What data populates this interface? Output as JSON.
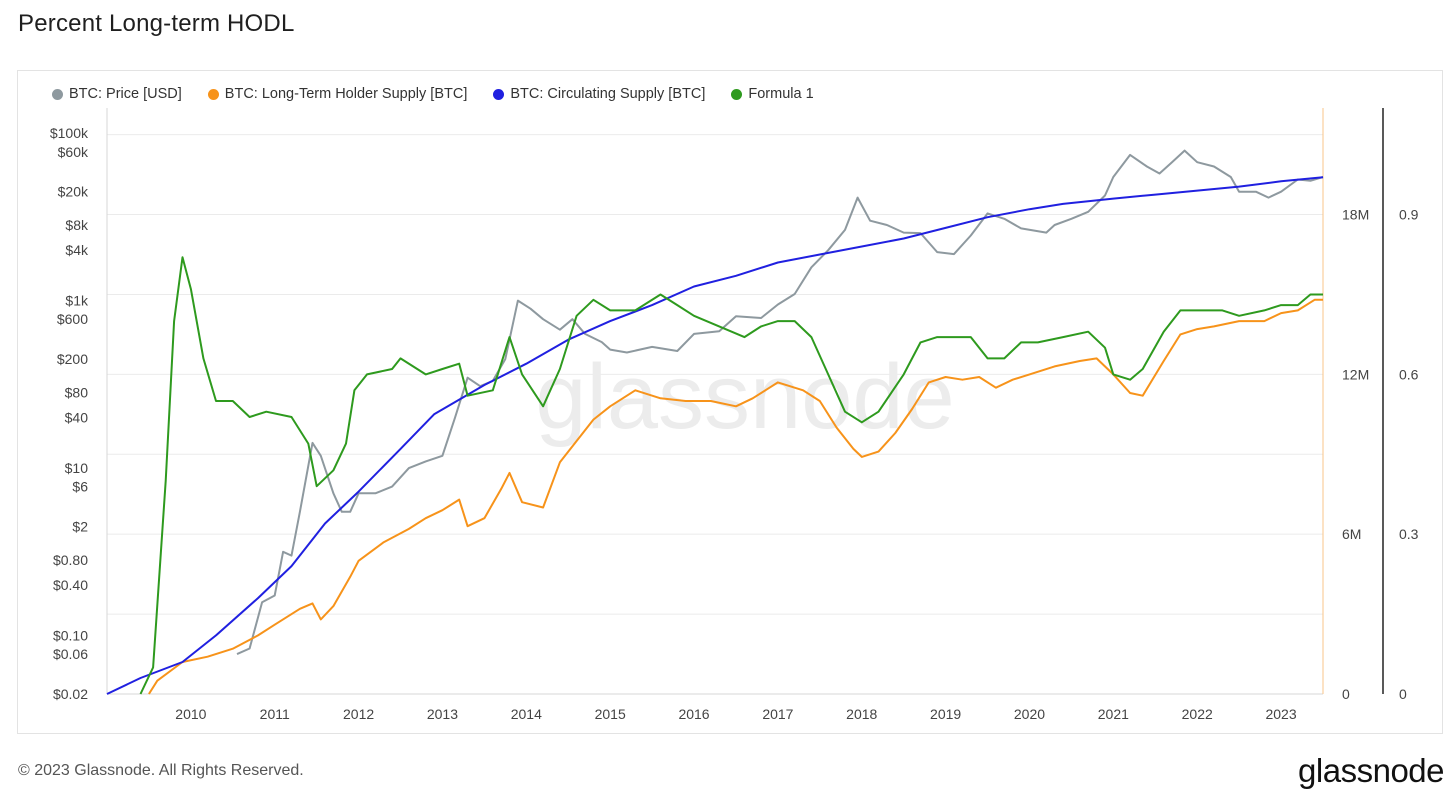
{
  "header": {
    "title": "Percent Long-term HODL"
  },
  "footer": {
    "copyright": "© 2023 Glassnode. All Rights Reserved.",
    "logo_text": "glassnode"
  },
  "watermark": "glassnode",
  "legend": [
    {
      "label": "BTC: Price [USD]",
      "color": "#8e999f"
    },
    {
      "label": "BTC: Long-Term Holder Supply [BTC]",
      "color": "#f7931a"
    },
    {
      "label": "BTC: Circulating Supply [BTC]",
      "color": "#2020e0"
    },
    {
      "label": "Formula 1",
      "color": "#2e9a1e"
    }
  ],
  "chart_data": {
    "type": "line",
    "title": "Percent Long-term HODL",
    "x_ticks": [
      "2010",
      "2011",
      "2012",
      "2013",
      "2014",
      "2015",
      "2016",
      "2017",
      "2018",
      "2019",
      "2020",
      "2021",
      "2022",
      "2023"
    ],
    "y_left_ticks": [
      "$100k",
      "$60k",
      "$20k",
      "$8k",
      "$4k",
      "$1k",
      "$600",
      "$200",
      "$80",
      "$40",
      "$10",
      "$6",
      "$2",
      "$0.80",
      "$0.40",
      "$0.10",
      "$0.06",
      "$0.02"
    ],
    "y_left_scale": "log",
    "y_supply_ticks": [
      "18M",
      "12M",
      "6M",
      "0"
    ],
    "y_supply_range": [
      0,
      22000000
    ],
    "y_ratio_ticks": [
      "0.9",
      "0.6",
      "0.3",
      "0"
    ],
    "y_ratio_range": [
      0,
      1.1
    ],
    "x_range": [
      2009.0,
      2023.5
    ],
    "grid": true,
    "legend_position": "top-left",
    "series": [
      {
        "name": "BTC: Price [USD]",
        "color": "#8e999f",
        "axis": "price",
        "points": [
          [
            2010.55,
            0.06
          ],
          [
            2010.7,
            0.07
          ],
          [
            2010.85,
            0.25
          ],
          [
            2011.0,
            0.3
          ],
          [
            2011.1,
            1
          ],
          [
            2011.2,
            0.9
          ],
          [
            2011.3,
            3
          ],
          [
            2011.45,
            20
          ],
          [
            2011.55,
            14
          ],
          [
            2011.7,
            5
          ],
          [
            2011.8,
            3
          ],
          [
            2011.9,
            3
          ],
          [
            2012.0,
            5
          ],
          [
            2012.2,
            5
          ],
          [
            2012.4,
            6
          ],
          [
            2012.6,
            10
          ],
          [
            2012.8,
            12
          ],
          [
            2013.0,
            14
          ],
          [
            2013.15,
            40
          ],
          [
            2013.3,
            120
          ],
          [
            2013.45,
            95
          ],
          [
            2013.6,
            110
          ],
          [
            2013.75,
            200
          ],
          [
            2013.9,
            1000
          ],
          [
            2014.05,
            800
          ],
          [
            2014.2,
            600
          ],
          [
            2014.4,
            450
          ],
          [
            2014.55,
            600
          ],
          [
            2014.7,
            400
          ],
          [
            2014.9,
            320
          ],
          [
            2015.0,
            260
          ],
          [
            2015.2,
            240
          ],
          [
            2015.5,
            280
          ],
          [
            2015.8,
            250
          ],
          [
            2016.0,
            400
          ],
          [
            2016.3,
            430
          ],
          [
            2016.5,
            650
          ],
          [
            2016.8,
            620
          ],
          [
            2017.0,
            900
          ],
          [
            2017.2,
            1200
          ],
          [
            2017.4,
            2500
          ],
          [
            2017.6,
            4000
          ],
          [
            2017.8,
            7000
          ],
          [
            2017.95,
            17000
          ],
          [
            2018.1,
            9000
          ],
          [
            2018.3,
            8000
          ],
          [
            2018.5,
            6500
          ],
          [
            2018.7,
            6400
          ],
          [
            2018.9,
            3800
          ],
          [
            2019.1,
            3600
          ],
          [
            2019.3,
            6000
          ],
          [
            2019.5,
            11000
          ],
          [
            2019.7,
            9500
          ],
          [
            2019.9,
            7300
          ],
          [
            2020.2,
            6500
          ],
          [
            2020.3,
            8000
          ],
          [
            2020.5,
            9500
          ],
          [
            2020.7,
            11500
          ],
          [
            2020.9,
            18000
          ],
          [
            2021.0,
            30000
          ],
          [
            2021.2,
            55000
          ],
          [
            2021.4,
            40000
          ],
          [
            2021.55,
            33000
          ],
          [
            2021.7,
            45000
          ],
          [
            2021.85,
            62000
          ],
          [
            2022.0,
            45000
          ],
          [
            2022.2,
            40000
          ],
          [
            2022.4,
            30000
          ],
          [
            2022.5,
            20000
          ],
          [
            2022.7,
            20000
          ],
          [
            2022.85,
            17000
          ],
          [
            2023.0,
            20000
          ],
          [
            2023.2,
            28000
          ],
          [
            2023.35,
            27000
          ],
          [
            2023.5,
            30000
          ]
        ]
      },
      {
        "name": "BTC: Long-Term Holder Supply [BTC]",
        "color": "#f7931a",
        "axis": "supply",
        "points": [
          [
            2009.5,
            0
          ],
          [
            2009.6,
            500000
          ],
          [
            2009.9,
            1200000
          ],
          [
            2010.2,
            1400000
          ],
          [
            2010.5,
            1700000
          ],
          [
            2010.8,
            2200000
          ],
          [
            2011.0,
            2600000
          ],
          [
            2011.3,
            3200000
          ],
          [
            2011.45,
            3400000
          ],
          [
            2011.55,
            2800000
          ],
          [
            2011.7,
            3300000
          ],
          [
            2011.9,
            4400000
          ],
          [
            2012.0,
            5000000
          ],
          [
            2012.3,
            5700000
          ],
          [
            2012.6,
            6200000
          ],
          [
            2012.8,
            6600000
          ],
          [
            2013.0,
            6900000
          ],
          [
            2013.2,
            7300000
          ],
          [
            2013.3,
            6300000
          ],
          [
            2013.5,
            6600000
          ],
          [
            2013.7,
            7700000
          ],
          [
            2013.8,
            8300000
          ],
          [
            2013.95,
            7200000
          ],
          [
            2014.2,
            7000000
          ],
          [
            2014.4,
            8700000
          ],
          [
            2014.6,
            9500000
          ],
          [
            2014.8,
            10300000
          ],
          [
            2015.0,
            10800000
          ],
          [
            2015.3,
            11400000
          ],
          [
            2015.6,
            11100000
          ],
          [
            2015.9,
            11000000
          ],
          [
            2016.2,
            11000000
          ],
          [
            2016.5,
            10800000
          ],
          [
            2016.7,
            11100000
          ],
          [
            2016.9,
            11500000
          ],
          [
            2017.0,
            11700000
          ],
          [
            2017.3,
            11400000
          ],
          [
            2017.5,
            11000000
          ],
          [
            2017.7,
            10000000
          ],
          [
            2017.9,
            9200000
          ],
          [
            2018.0,
            8900000
          ],
          [
            2018.2,
            9100000
          ],
          [
            2018.4,
            9800000
          ],
          [
            2018.6,
            10700000
          ],
          [
            2018.8,
            11700000
          ],
          [
            2019.0,
            11900000
          ],
          [
            2019.2,
            11800000
          ],
          [
            2019.4,
            11900000
          ],
          [
            2019.6,
            11500000
          ],
          [
            2019.8,
            11800000
          ],
          [
            2020.0,
            12000000
          ],
          [
            2020.3,
            12300000
          ],
          [
            2020.6,
            12500000
          ],
          [
            2020.8,
            12600000
          ],
          [
            2021.0,
            12000000
          ],
          [
            2021.2,
            11300000
          ],
          [
            2021.35,
            11200000
          ],
          [
            2021.6,
            12500000
          ],
          [
            2021.8,
            13500000
          ],
          [
            2022.0,
            13700000
          ],
          [
            2022.2,
            13800000
          ],
          [
            2022.5,
            14000000
          ],
          [
            2022.8,
            14000000
          ],
          [
            2023.0,
            14300000
          ],
          [
            2023.2,
            14400000
          ],
          [
            2023.4,
            14800000
          ],
          [
            2023.5,
            14800000
          ]
        ]
      },
      {
        "name": "BTC: Circulating Supply [BTC]",
        "color": "#2020e0",
        "axis": "supply",
        "points": [
          [
            2009.0,
            0
          ],
          [
            2009.4,
            600000
          ],
          [
            2009.9,
            1200000
          ],
          [
            2010.3,
            2200000
          ],
          [
            2010.8,
            3600000
          ],
          [
            2011.2,
            4800000
          ],
          [
            2011.6,
            6400000
          ],
          [
            2012.0,
            7600000
          ],
          [
            2012.5,
            9200000
          ],
          [
            2012.9,
            10500000
          ],
          [
            2013.5,
            11600000
          ],
          [
            2014.0,
            12400000
          ],
          [
            2014.5,
            13300000
          ],
          [
            2015.0,
            14000000
          ],
          [
            2015.5,
            14600000
          ],
          [
            2016.0,
            15300000
          ],
          [
            2016.5,
            15700000
          ],
          [
            2017.0,
            16200000
          ],
          [
            2017.5,
            16500000
          ],
          [
            2018.0,
            16800000
          ],
          [
            2018.5,
            17100000
          ],
          [
            2019.0,
            17500000
          ],
          [
            2019.5,
            17900000
          ],
          [
            2020.0,
            18200000
          ],
          [
            2020.4,
            18400000
          ],
          [
            2021.0,
            18600000
          ],
          [
            2021.5,
            18750000
          ],
          [
            2022.0,
            18900000
          ],
          [
            2022.5,
            19050000
          ],
          [
            2023.0,
            19250000
          ],
          [
            2023.5,
            19400000
          ]
        ]
      },
      {
        "name": "Formula 1",
        "color": "#2e9a1e",
        "axis": "ratio",
        "points": [
          [
            2009.4,
            0
          ],
          [
            2009.55,
            0.05
          ],
          [
            2009.7,
            0.4
          ],
          [
            2009.8,
            0.7
          ],
          [
            2009.9,
            0.82
          ],
          [
            2010.0,
            0.76
          ],
          [
            2010.15,
            0.63
          ],
          [
            2010.3,
            0.55
          ],
          [
            2010.5,
            0.55
          ],
          [
            2010.7,
            0.52
          ],
          [
            2010.9,
            0.53
          ],
          [
            2011.2,
            0.52
          ],
          [
            2011.4,
            0.47
          ],
          [
            2011.5,
            0.39
          ],
          [
            2011.7,
            0.42
          ],
          [
            2011.85,
            0.47
          ],
          [
            2011.95,
            0.57
          ],
          [
            2012.1,
            0.6
          ],
          [
            2012.4,
            0.61
          ],
          [
            2012.5,
            0.63
          ],
          [
            2012.8,
            0.6
          ],
          [
            2013.0,
            0.61
          ],
          [
            2013.2,
            0.62
          ],
          [
            2013.3,
            0.56
          ],
          [
            2013.6,
            0.57
          ],
          [
            2013.8,
            0.67
          ],
          [
            2013.95,
            0.6
          ],
          [
            2014.2,
            0.54
          ],
          [
            2014.4,
            0.61
          ],
          [
            2014.6,
            0.71
          ],
          [
            2014.8,
            0.74
          ],
          [
            2015.0,
            0.72
          ],
          [
            2015.3,
            0.72
          ],
          [
            2015.6,
            0.75
          ],
          [
            2015.8,
            0.73
          ],
          [
            2016.0,
            0.71
          ],
          [
            2016.3,
            0.69
          ],
          [
            2016.6,
            0.67
          ],
          [
            2016.8,
            0.69
          ],
          [
            2017.0,
            0.7
          ],
          [
            2017.2,
            0.7
          ],
          [
            2017.4,
            0.67
          ],
          [
            2017.6,
            0.6
          ],
          [
            2017.8,
            0.53
          ],
          [
            2018.0,
            0.51
          ],
          [
            2018.2,
            0.53
          ],
          [
            2018.5,
            0.6
          ],
          [
            2018.7,
            0.66
          ],
          [
            2018.9,
            0.67
          ],
          [
            2019.1,
            0.67
          ],
          [
            2019.3,
            0.67
          ],
          [
            2019.5,
            0.63
          ],
          [
            2019.7,
            0.63
          ],
          [
            2019.9,
            0.66
          ],
          [
            2020.1,
            0.66
          ],
          [
            2020.4,
            0.67
          ],
          [
            2020.7,
            0.68
          ],
          [
            2020.9,
            0.65
          ],
          [
            2021.0,
            0.6
          ],
          [
            2021.2,
            0.59
          ],
          [
            2021.35,
            0.61
          ],
          [
            2021.6,
            0.68
          ],
          [
            2021.8,
            0.72
          ],
          [
            2022.0,
            0.72
          ],
          [
            2022.3,
            0.72
          ],
          [
            2022.5,
            0.71
          ],
          [
            2022.8,
            0.72
          ],
          [
            2023.0,
            0.73
          ],
          [
            2023.2,
            0.73
          ],
          [
            2023.35,
            0.75
          ],
          [
            2023.5,
            0.75
          ]
        ]
      }
    ]
  }
}
